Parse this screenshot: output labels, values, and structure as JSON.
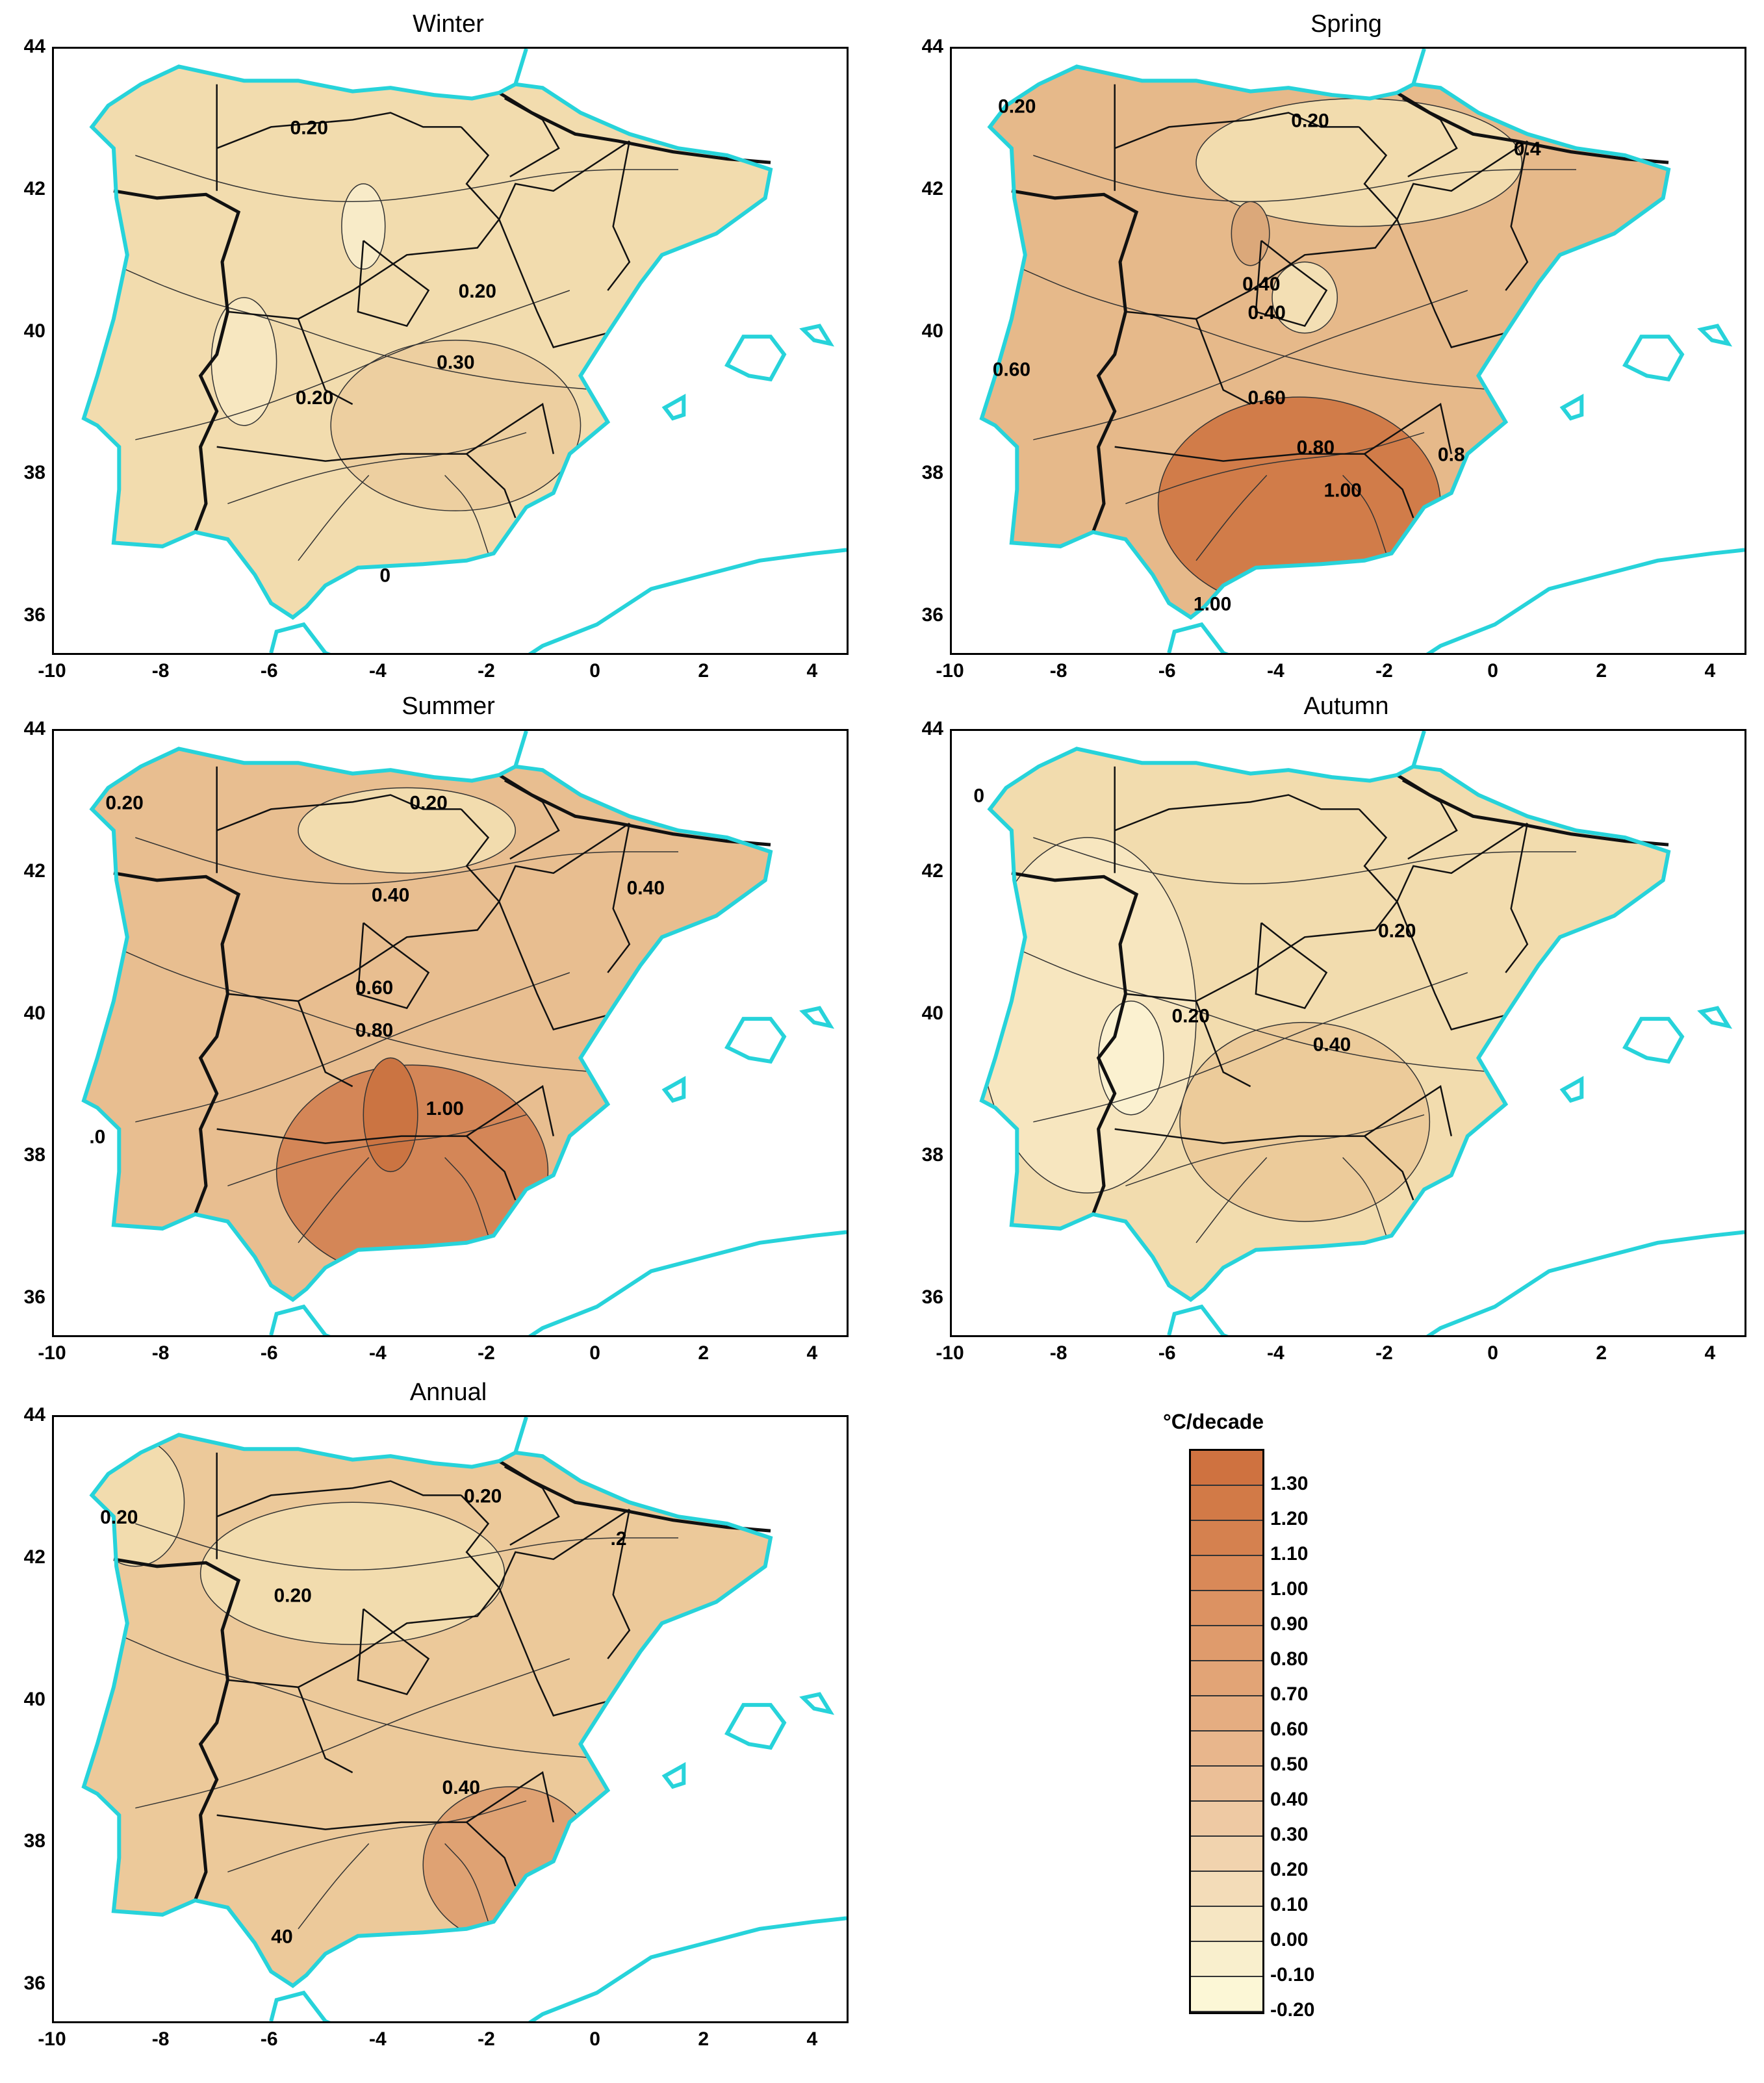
{
  "map_meta": {
    "lon_range": [
      -10,
      4.6
    ],
    "lat_range": [
      35.5,
      44
    ],
    "x_ticks": [
      "-10",
      "-8",
      "-6",
      "-4",
      "-2",
      "0",
      "2",
      "4"
    ],
    "y_ticks": [
      "44",
      "42",
      "40",
      "38",
      "36"
    ]
  },
  "colors": {
    "land_base": "#f3dcae",
    "coast": "#27d3da",
    "border": "#111111",
    "contour": "#333333"
  },
  "panels": [
    {
      "title": "Winter",
      "fill": "#f2dcae",
      "blobs": [
        {
          "lon": -4.3,
          "lat": 41.5,
          "rx": 0.4,
          "ry": 0.6,
          "color": "#f8ebc8"
        },
        {
          "lon": -6.5,
          "lat": 39.6,
          "rx": 0.6,
          "ry": 0.9,
          "color": "#f7e7c0"
        },
        {
          "lon": -2.6,
          "lat": 38.7,
          "rx": 2.3,
          "ry": 1.2,
          "color": "#edcfa0"
        }
      ],
      "contour_labels": [
        "0.20",
        "0.20",
        "0.30",
        "0.20",
        "0"
      ]
    },
    {
      "title": "Spring",
      "fill": "#e6b98a",
      "blobs": [
        {
          "lon": -2.5,
          "lat": 42.4,
          "rx": 3.0,
          "ry": 0.9,
          "color": "#f2dcae"
        },
        {
          "lon": -3.5,
          "lat": 40.5,
          "rx": 0.6,
          "ry": 0.5,
          "color": "#f3dfb4"
        },
        {
          "lon": -4.5,
          "lat": 41.4,
          "rx": 0.35,
          "ry": 0.45,
          "color": "#dba87a"
        },
        {
          "lon": -3.6,
          "lat": 37.6,
          "rx": 2.6,
          "ry": 1.5,
          "color": "#d17c49"
        }
      ],
      "contour_labels": [
        "0.20",
        "0.20",
        "0.40",
        "0.40",
        "0.60",
        "0.60",
        "0.80",
        "1.00",
        "0.8",
        "1.00",
        "0.4"
      ]
    },
    {
      "title": "Summer",
      "fill": "#e8be90",
      "blobs": [
        {
          "lon": -3.5,
          "lat": 42.6,
          "rx": 2.0,
          "ry": 0.6,
          "color": "#f2dcae"
        },
        {
          "lon": -3.4,
          "lat": 37.8,
          "rx": 2.5,
          "ry": 1.5,
          "color": "#d48657"
        },
        {
          "lon": -3.8,
          "lat": 38.6,
          "rx": 0.5,
          "ry": 0.8,
          "color": "#cb7442"
        }
      ],
      "contour_labels": [
        "0.20",
        "0.20",
        "0.40",
        "0.40",
        "0.60",
        "0.80",
        "1.00",
        ".0"
      ]
    },
    {
      "title": "Autumn",
      "fill": "#f2dcae",
      "blobs": [
        {
          "lon": -7.5,
          "lat": 40.0,
          "rx": 2.0,
          "ry": 2.5,
          "color": "#f7e6bf"
        },
        {
          "lon": -6.7,
          "lat": 39.4,
          "rx": 0.6,
          "ry": 0.8,
          "color": "#fbf1d0"
        },
        {
          "lon": -3.5,
          "lat": 38.5,
          "rx": 2.3,
          "ry": 1.4,
          "color": "#eccb9a"
        }
      ],
      "contour_labels": [
        "0.20",
        "0.20",
        "0.40",
        "0"
      ]
    },
    {
      "title": "Annual",
      "fill": "#ecc99a",
      "blobs": [
        {
          "lon": -4.5,
          "lat": 41.8,
          "rx": 2.8,
          "ry": 1.0,
          "color": "#f2dcae"
        },
        {
          "lon": -8.5,
          "lat": 42.8,
          "rx": 0.9,
          "ry": 0.9,
          "color": "#f2dcae"
        },
        {
          "lon": -1.6,
          "lat": 37.7,
          "rx": 1.6,
          "ry": 1.1,
          "color": "#dfa273"
        }
      ],
      "contour_labels": [
        "0.20",
        "0.20",
        "0.20",
        "0.40",
        "40",
        ".2"
      ]
    }
  ],
  "legend": {
    "title": "°C/decade",
    "steps": [
      {
        "label": "1.30",
        "color": "#cf7240"
      },
      {
        "label": "1.20",
        "color": "#d27a47"
      },
      {
        "label": "1.10",
        "color": "#d5814f"
      },
      {
        "label": "1.00",
        "color": "#d98958"
      },
      {
        "label": "0.90",
        "color": "#dc9262"
      },
      {
        "label": "0.80",
        "color": "#df9b6c"
      },
      {
        "label": "0.70",
        "color": "#e2a476"
      },
      {
        "label": "0.60",
        "color": "#e5ad81"
      },
      {
        "label": "0.50",
        "color": "#e8b68c"
      },
      {
        "label": "0.40",
        "color": "#ebbf97"
      },
      {
        "label": "0.30",
        "color": "#eec9a3"
      },
      {
        "label": "0.20",
        "color": "#f1d3ae"
      },
      {
        "label": "0.10",
        "color": "#f3dcb8"
      },
      {
        "label": "0.00",
        "color": "#f6e6c3"
      },
      {
        "label": "-0.10",
        "color": "#f9efcd"
      },
      {
        "label": "-0.20",
        "color": "#fcf7d6"
      }
    ]
  }
}
